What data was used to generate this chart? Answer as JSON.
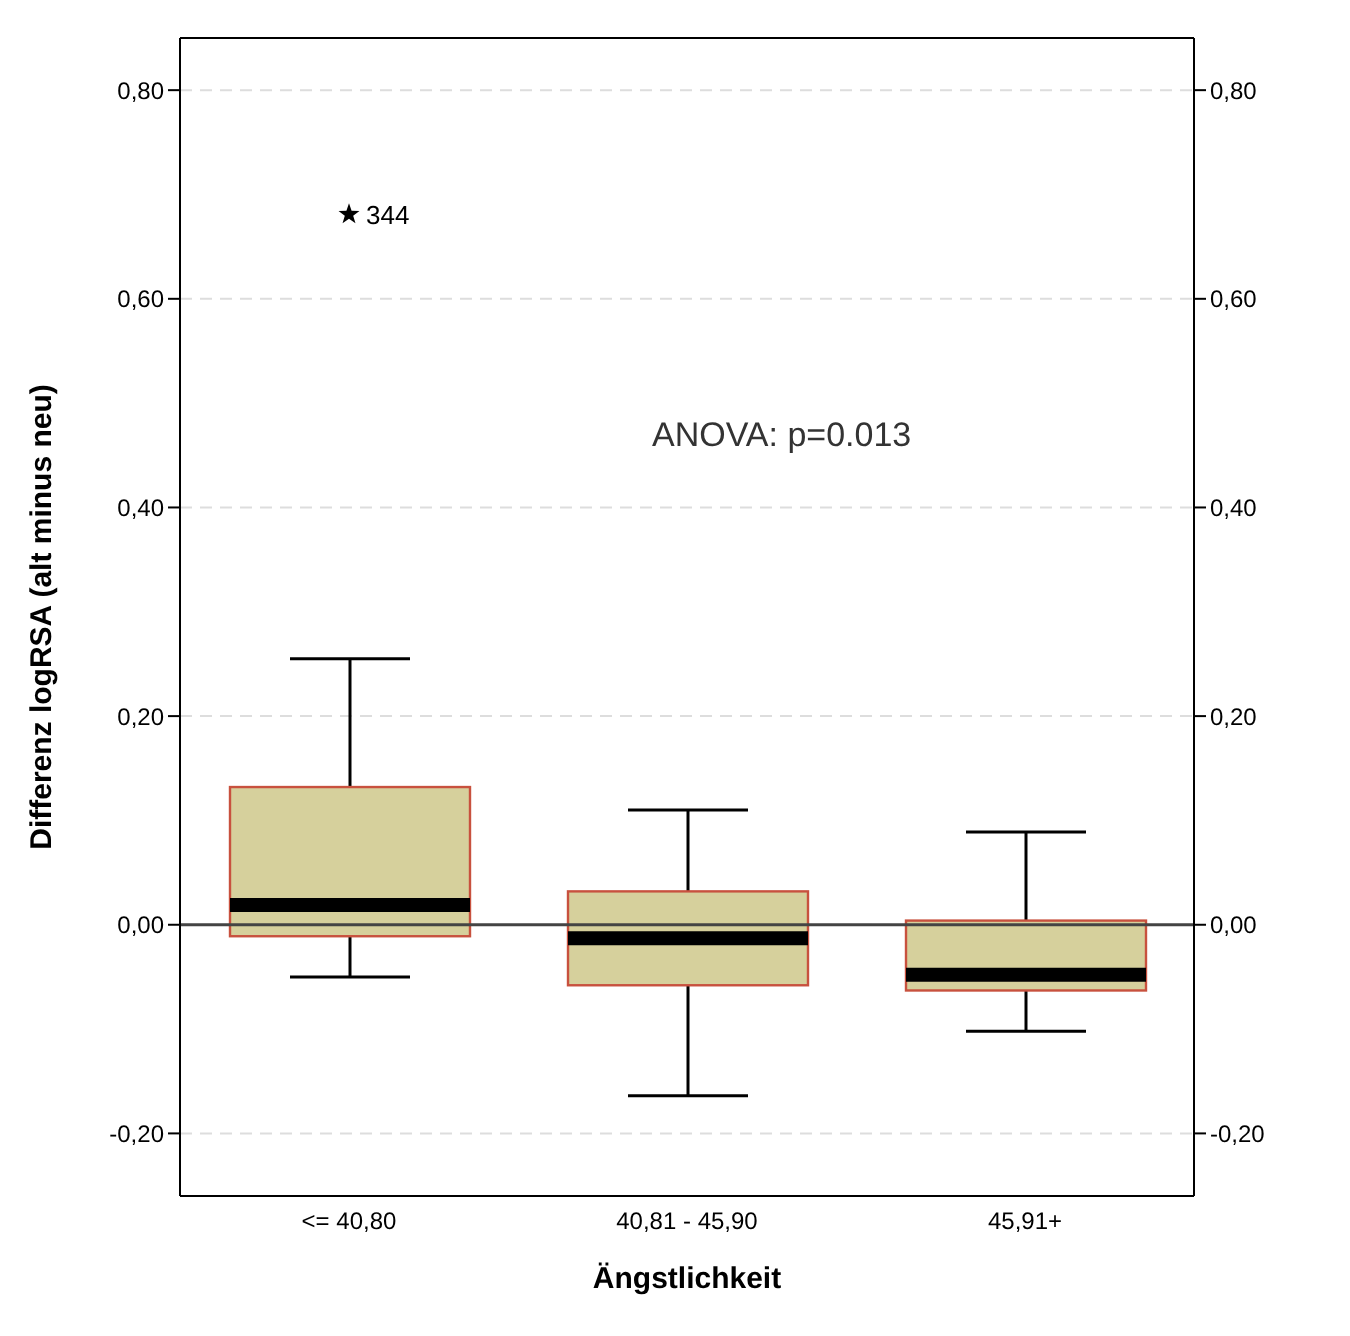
{
  "chart_data": {
    "type": "box",
    "xlabel": "Ängstlichkeit",
    "ylabel": "Differenz logRSA (alt minus neu)",
    "categories": [
      "<= 40,80",
      "40,81 - 45,90",
      "45,91+"
    ],
    "color": "#d6d09c",
    "boxes": [
      {
        "low": -0.05,
        "q1": -0.011,
        "median": 0.019,
        "q3": 0.132,
        "high": 0.255,
        "outliers": [
          0.681
        ]
      },
      {
        "low": -0.164,
        "q1": -0.058,
        "median": -0.013,
        "q3": 0.032,
        "high": 0.11
      },
      {
        "low": -0.102,
        "q1": -0.063,
        "median": -0.048,
        "q3": 0.004,
        "high": 0.089
      }
    ],
    "marker": "star",
    "ylim": [
      -0.26,
      0.85
    ],
    "yticks": [
      {
        "value": -0.2,
        "label": "-0,20"
      },
      {
        "value": 0,
        "label": "0,00"
      },
      {
        "value": 0.2,
        "label": "0,20"
      },
      {
        "value": 0.4,
        "label": "0,40"
      },
      {
        "value": 0.6,
        "label": "0,60"
      },
      {
        "value": 0.8,
        "label": "0,80"
      }
    ],
    "y2lim": [
      -0.26,
      0.85
    ],
    "y2ticks": [
      {
        "value": -0.2,
        "label": "-0,20"
      },
      {
        "value": 0,
        "label": "0,00"
      },
      {
        "value": 0.2,
        "label": "0,20"
      },
      {
        "value": 0.4,
        "label": "0,40"
      },
      {
        "value": 0.6,
        "label": "0,60"
      },
      {
        "value": 0.8,
        "label": "0,80"
      }
    ],
    "ref_lines": [
      {
        "axis": "y",
        "value": 0,
        "color": "#444444"
      }
    ],
    "grid": "y",
    "annotations": [
      "344",
      "ANOVA: p=0.013"
    ]
  }
}
